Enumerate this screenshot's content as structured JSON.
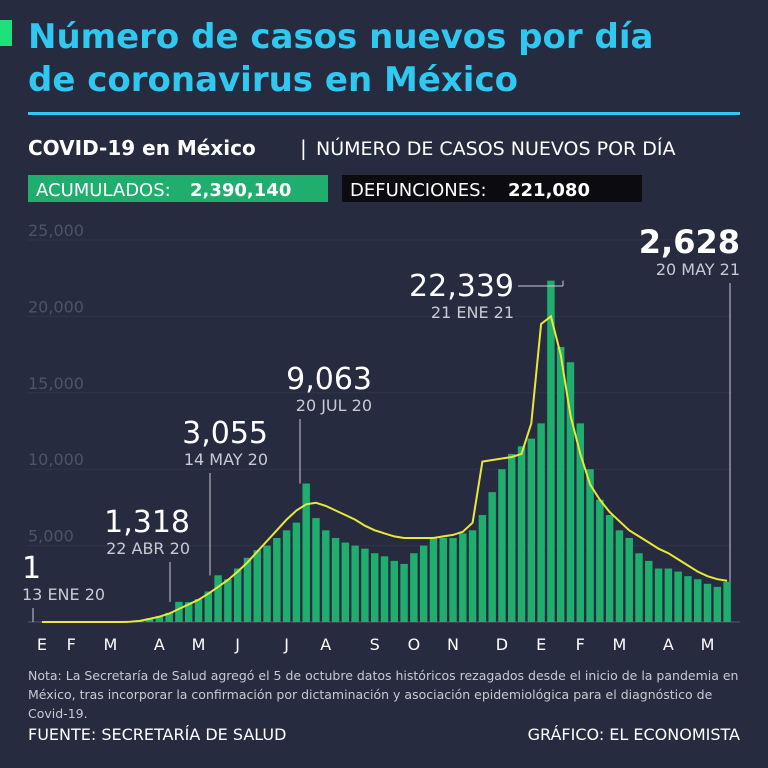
{
  "title_lines": [
    "Número de casos nuevos por día",
    "de coronavirus en México"
  ],
  "subtitle": {
    "bold": "COVID-19 en México",
    "separator": "|",
    "rest": "NÚMERO DE CASOS NUEVOS POR DÍA"
  },
  "totals": {
    "accumulated_label": "ACUMULADOS:",
    "accumulated_value": "2,390,140",
    "deaths_label": "DEFUNCIONES:",
    "deaths_value": "221,080"
  },
  "chart_data": {
    "type": "bar",
    "color": "#1fae6e",
    "trend_color": "#e9e83a",
    "categories": [
      "E",
      null,
      null,
      "F",
      null,
      null,
      null,
      "M",
      null,
      null,
      null,
      null,
      "A",
      null,
      null,
      null,
      "M",
      null,
      null,
      null,
      "J",
      null,
      null,
      null,
      null,
      "J",
      null,
      null,
      null,
      "A",
      null,
      null,
      null,
      null,
      "S",
      null,
      null,
      null,
      "O",
      null,
      null,
      null,
      "N",
      null,
      null,
      null,
      null,
      "D",
      null,
      null,
      null,
      "E",
      null,
      null,
      null,
      "F",
      null,
      null,
      null,
      "M",
      null,
      null,
      null,
      null,
      "A",
      null,
      null,
      null,
      "M",
      null,
      null
    ],
    "values": [
      1,
      0,
      0,
      0,
      0,
      0,
      0,
      0,
      5,
      20,
      100,
      250,
      400,
      600,
      1318,
      1300,
      1500,
      2000,
      3055,
      2800,
      3500,
      4200,
      4700,
      5000,
      5500,
      6000,
      6500,
      9063,
      6800,
      6000,
      5500,
      5200,
      5000,
      4800,
      4500,
      4300,
      4000,
      3800,
      4500,
      5000,
      5500,
      5500,
      5500,
      5800,
      6000,
      7000,
      8500,
      10000,
      11000,
      11500,
      12000,
      13000,
      22339,
      18000,
      17000,
      13000,
      10000,
      8000,
      7000,
      6000,
      5500,
      4500,
      4000,
      3500,
      3500,
      3300,
      3000,
      2800,
      2500,
      2300,
      2628
    ],
    "trend_values": [
      0,
      0,
      0,
      0,
      0,
      0,
      0,
      0,
      3,
      15,
      70,
      200,
      350,
      550,
      850,
      1150,
      1450,
      1850,
      2300,
      2750,
      3300,
      3900,
      4600,
      5300,
      6000,
      6700,
      7300,
      7700,
      7800,
      7600,
      7300,
      7000,
      6700,
      6300,
      6000,
      5800,
      5600,
      5500,
      5500,
      5500,
      5500,
      5600,
      5700,
      5900,
      6500,
      10500,
      10600,
      10700,
      10800,
      11000,
      13000,
      19500,
      20000,
      17500,
      13500,
      11000,
      9000,
      8000,
      7200,
      6600,
      6000,
      5600,
      5200,
      4800,
      4500,
      4100,
      3700,
      3300,
      3000,
      2800,
      2700
    ],
    "ylim": [
      0,
      25000
    ],
    "yticks": [
      {
        "value": 5000,
        "label": "5,000"
      },
      {
        "value": 10000,
        "label": "10,000"
      },
      {
        "value": 15000,
        "label": "15,000"
      },
      {
        "value": 20000,
        "label": "20,000"
      },
      {
        "value": 25000,
        "label": "25,000"
      }
    ],
    "annotations": [
      {
        "value": 1,
        "value_label": "1",
        "date": "13 ENE 20"
      },
      {
        "value": 1318,
        "value_label": "1,318",
        "date": "22 ABR 20"
      },
      {
        "value": 3055,
        "value_label": "3,055",
        "date": "14 MAY 20"
      },
      {
        "value": 9063,
        "value_label": "9,063",
        "date": "20 JUL 20"
      },
      {
        "value": 22339,
        "value_label": "22,339",
        "date": "21 ENE 21"
      },
      {
        "value": 2628,
        "value_label": "2,628",
        "date": "20 MAY 21"
      }
    ]
  },
  "note": "Nota: La Secretaría de Salud agregó el 5 de octubre datos históricos rezagados desde el inicio de la pandemia en México, tras incorporar la confirmación por dictaminación y asociación epidemiológica para el diagnóstico de Covid-19.",
  "source": "FUENTE: SECRETARÍA DE SALUD",
  "credit": "GRÁFICO: EL ECONOMISTA"
}
